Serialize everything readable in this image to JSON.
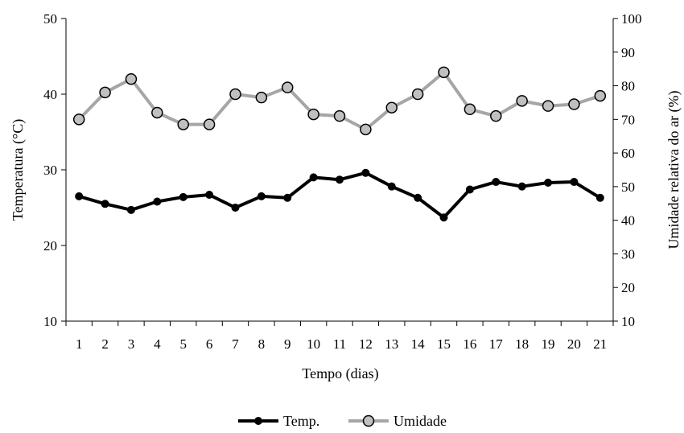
{
  "chart_data": {
    "type": "line",
    "title": "",
    "xlabel": "Tempo (dias)",
    "ylabel_left": "Temperatura (°C)",
    "ylabel_right": "Umidade relativa  do ar (%)",
    "categories": [
      "1",
      "2",
      "3",
      "4",
      "5",
      "6",
      "7",
      "8",
      "9",
      "10",
      "11",
      "12",
      "13",
      "14",
      "15",
      "16",
      "17",
      "18",
      "19",
      "20",
      "21"
    ],
    "ylim_left": [
      10,
      50
    ],
    "yticks_left": [
      10,
      20,
      30,
      40,
      50
    ],
    "ylim_right": [
      10,
      100
    ],
    "yticks_right": [
      10,
      20,
      30,
      40,
      50,
      60,
      70,
      80,
      90,
      100
    ],
    "grid": false,
    "legend_position": "bottom",
    "series": [
      {
        "name": "Temp.",
        "axis": "left",
        "color": "#000000",
        "marker": "filled-circle",
        "values": [
          26.5,
          25.5,
          24.7,
          25.8,
          26.4,
          26.7,
          25.0,
          26.5,
          26.3,
          29.0,
          28.7,
          29.6,
          27.8,
          26.3,
          23.7,
          27.4,
          28.4,
          27.8,
          28.3,
          28.4,
          26.3
        ]
      },
      {
        "name": "Umidade",
        "axis": "right",
        "color": "#a6a6a6",
        "marker": "gray-circle",
        "values": [
          70,
          78,
          82,
          72,
          68.5,
          68.5,
          77.5,
          76.5,
          79.5,
          71.5,
          71,
          67,
          73.5,
          77.5,
          84,
          73,
          71,
          75.5,
          74,
          74.5,
          77
        ]
      }
    ]
  }
}
